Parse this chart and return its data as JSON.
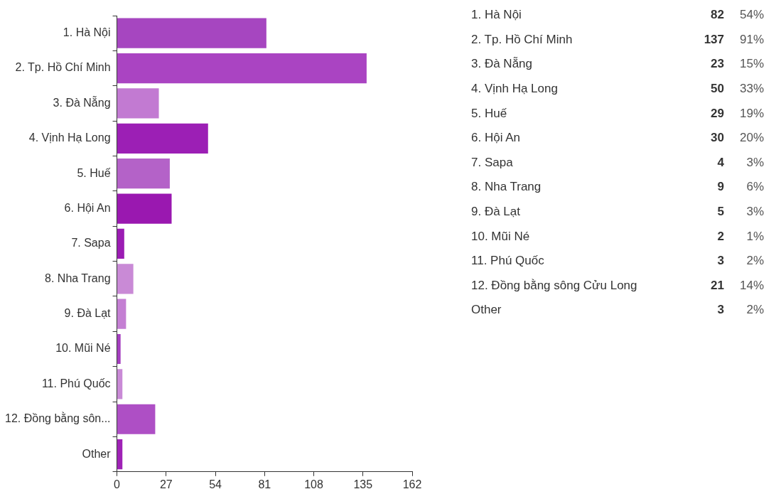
{
  "chart_data": [
    {
      "type": "bar",
      "orientation": "horizontal",
      "categories": [
        "1. Hà Nội",
        "2. Tp. Hồ Chí Minh",
        "3. Đà Nẵng",
        "4. Vịnh Hạ Long",
        "5. Huế",
        "6. Hội An",
        "7. Sapa",
        "8. Nha Trang",
        "9. Đà Lạt",
        "10. Mũi Né",
        "11. Phú Quốc",
        "12. Đồng bằng sôn...",
        "Other"
      ],
      "values": [
        82,
        137,
        23,
        50,
        29,
        30,
        4,
        9,
        5,
        2,
        3,
        21,
        3
      ],
      "colors": [
        "#a646c0",
        "#aa44c2",
        "#c27ad2",
        "#9c1fb5",
        "#b462c8",
        "#9a18b0",
        "#9b1cb3",
        "#c98ad6",
        "#c47fd3",
        "#a43dbf",
        "#c98ad6",
        "#ae4fc5",
        "#9f22b6"
      ],
      "xlim": [
        0,
        162
      ],
      "xticks": [
        0,
        27,
        54,
        81,
        108,
        135,
        162
      ],
      "grid": false,
      "legend": false
    },
    {
      "type": "other",
      "categories": [
        "1. Hà Nội",
        "2. Tp. Hồ Chí Minh",
        "3. Đà Nẵng",
        "4. Vịnh Hạ Long",
        "5. Huế",
        "6. Hội An",
        "7. Sapa",
        "8. Nha Trang",
        "9. Đà Lạt",
        "10. Mũi Né",
        "11. Phú Quốc",
        "12. Đồng bằng sông Cửu Long",
        "Other"
      ],
      "values": [
        82,
        137,
        23,
        50,
        29,
        30,
        4,
        9,
        5,
        2,
        3,
        21,
        3
      ],
      "data_labels": true,
      "annotations": [
        "54%",
        "91%",
        "15%",
        "33%",
        "19%",
        "20%",
        "3%",
        "6%",
        "3%",
        "1%",
        "2%",
        "14%",
        "2%"
      ]
    }
  ]
}
